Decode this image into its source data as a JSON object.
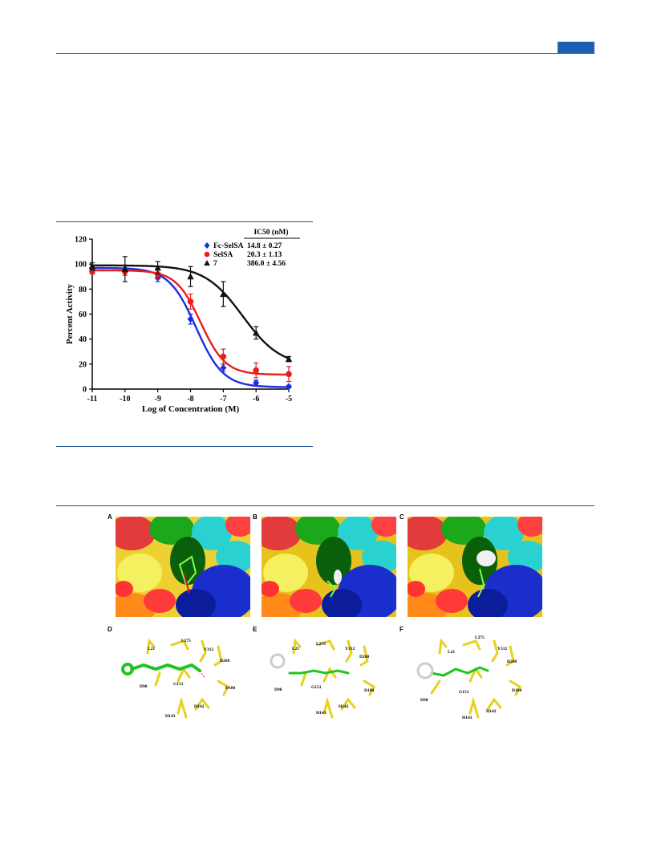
{
  "chart_data": {
    "type": "line",
    "xlabel": "Log of Concentration (M)",
    "ylabel": "Percent Activity",
    "xlim": [
      -11,
      -5
    ],
    "ylim": [
      0,
      120
    ],
    "x_ticks": [
      "-11",
      "-10",
      "-9",
      "-8",
      "-7",
      "-6",
      "-5"
    ],
    "y_ticks": [
      "0",
      "20",
      "40",
      "60",
      "80",
      "100",
      "120"
    ],
    "legend_header": "IC50 (nM)",
    "legend_position": "top-right",
    "series": [
      {
        "name": "Fc-SelSA",
        "ic50_label": "14.8 ± 0.27",
        "color": "#1a2ee0",
        "marker": "diamond",
        "x": [
          -11,
          -10,
          -9,
          -8,
          -7,
          -6,
          -5
        ],
        "y": [
          97,
          96,
          89,
          56,
          17,
          5,
          2
        ],
        "err": [
          2,
          3,
          3,
          4,
          3,
          2,
          1
        ],
        "fit": {
          "top": 97,
          "bottom": 1.5,
          "logIC50": -7.83,
          "hill": 1.05
        }
      },
      {
        "name": "SelSA",
        "ic50_label": "20.3 ± 1.13",
        "color": "#e81e1e",
        "marker": "circle",
        "x": [
          -11,
          -10,
          -9,
          -8,
          -7,
          -6,
          -5
        ],
        "y": [
          94,
          94,
          92,
          70,
          26,
          15,
          12
        ],
        "err": [
          2,
          3,
          4,
          6,
          6,
          6,
          6
        ],
        "fit": {
          "top": 95,
          "bottom": 11.5,
          "logIC50": -7.69,
          "hill": 1.15
        }
      },
      {
        "name": "7",
        "ic50_label": "386.0 ± 4.56",
        "color": "#111111",
        "marker": "triangle",
        "x": [
          -11,
          -10,
          -9,
          -8,
          -7,
          -6,
          -5
        ],
        "y": [
          98,
          96,
          97,
          90,
          76,
          45,
          24
        ],
        "err": [
          3,
          10,
          5,
          8,
          10,
          5,
          2
        ],
        "fit": {
          "top": 99,
          "bottom": 18,
          "logIC50": -6.41,
          "hill": 0.75
        }
      }
    ]
  },
  "figure_panels": {
    "labels": [
      "A",
      "B",
      "C",
      "D",
      "E",
      "F"
    ],
    "residue_labels_D": [
      "L21",
      "L275",
      "Y312",
      "D268",
      "D98",
      "G151",
      "D180",
      "H143",
      "H142"
    ],
    "residue_labels_E": [
      "L21",
      "L275",
      "Y312",
      "D268",
      "D98",
      "G151",
      "D180",
      "H143",
      "H142"
    ],
    "residue_labels_F": [
      "L21",
      "L275",
      "Y312",
      "D268",
      "D98",
      "G151",
      "D180",
      "H143",
      "H142"
    ]
  }
}
